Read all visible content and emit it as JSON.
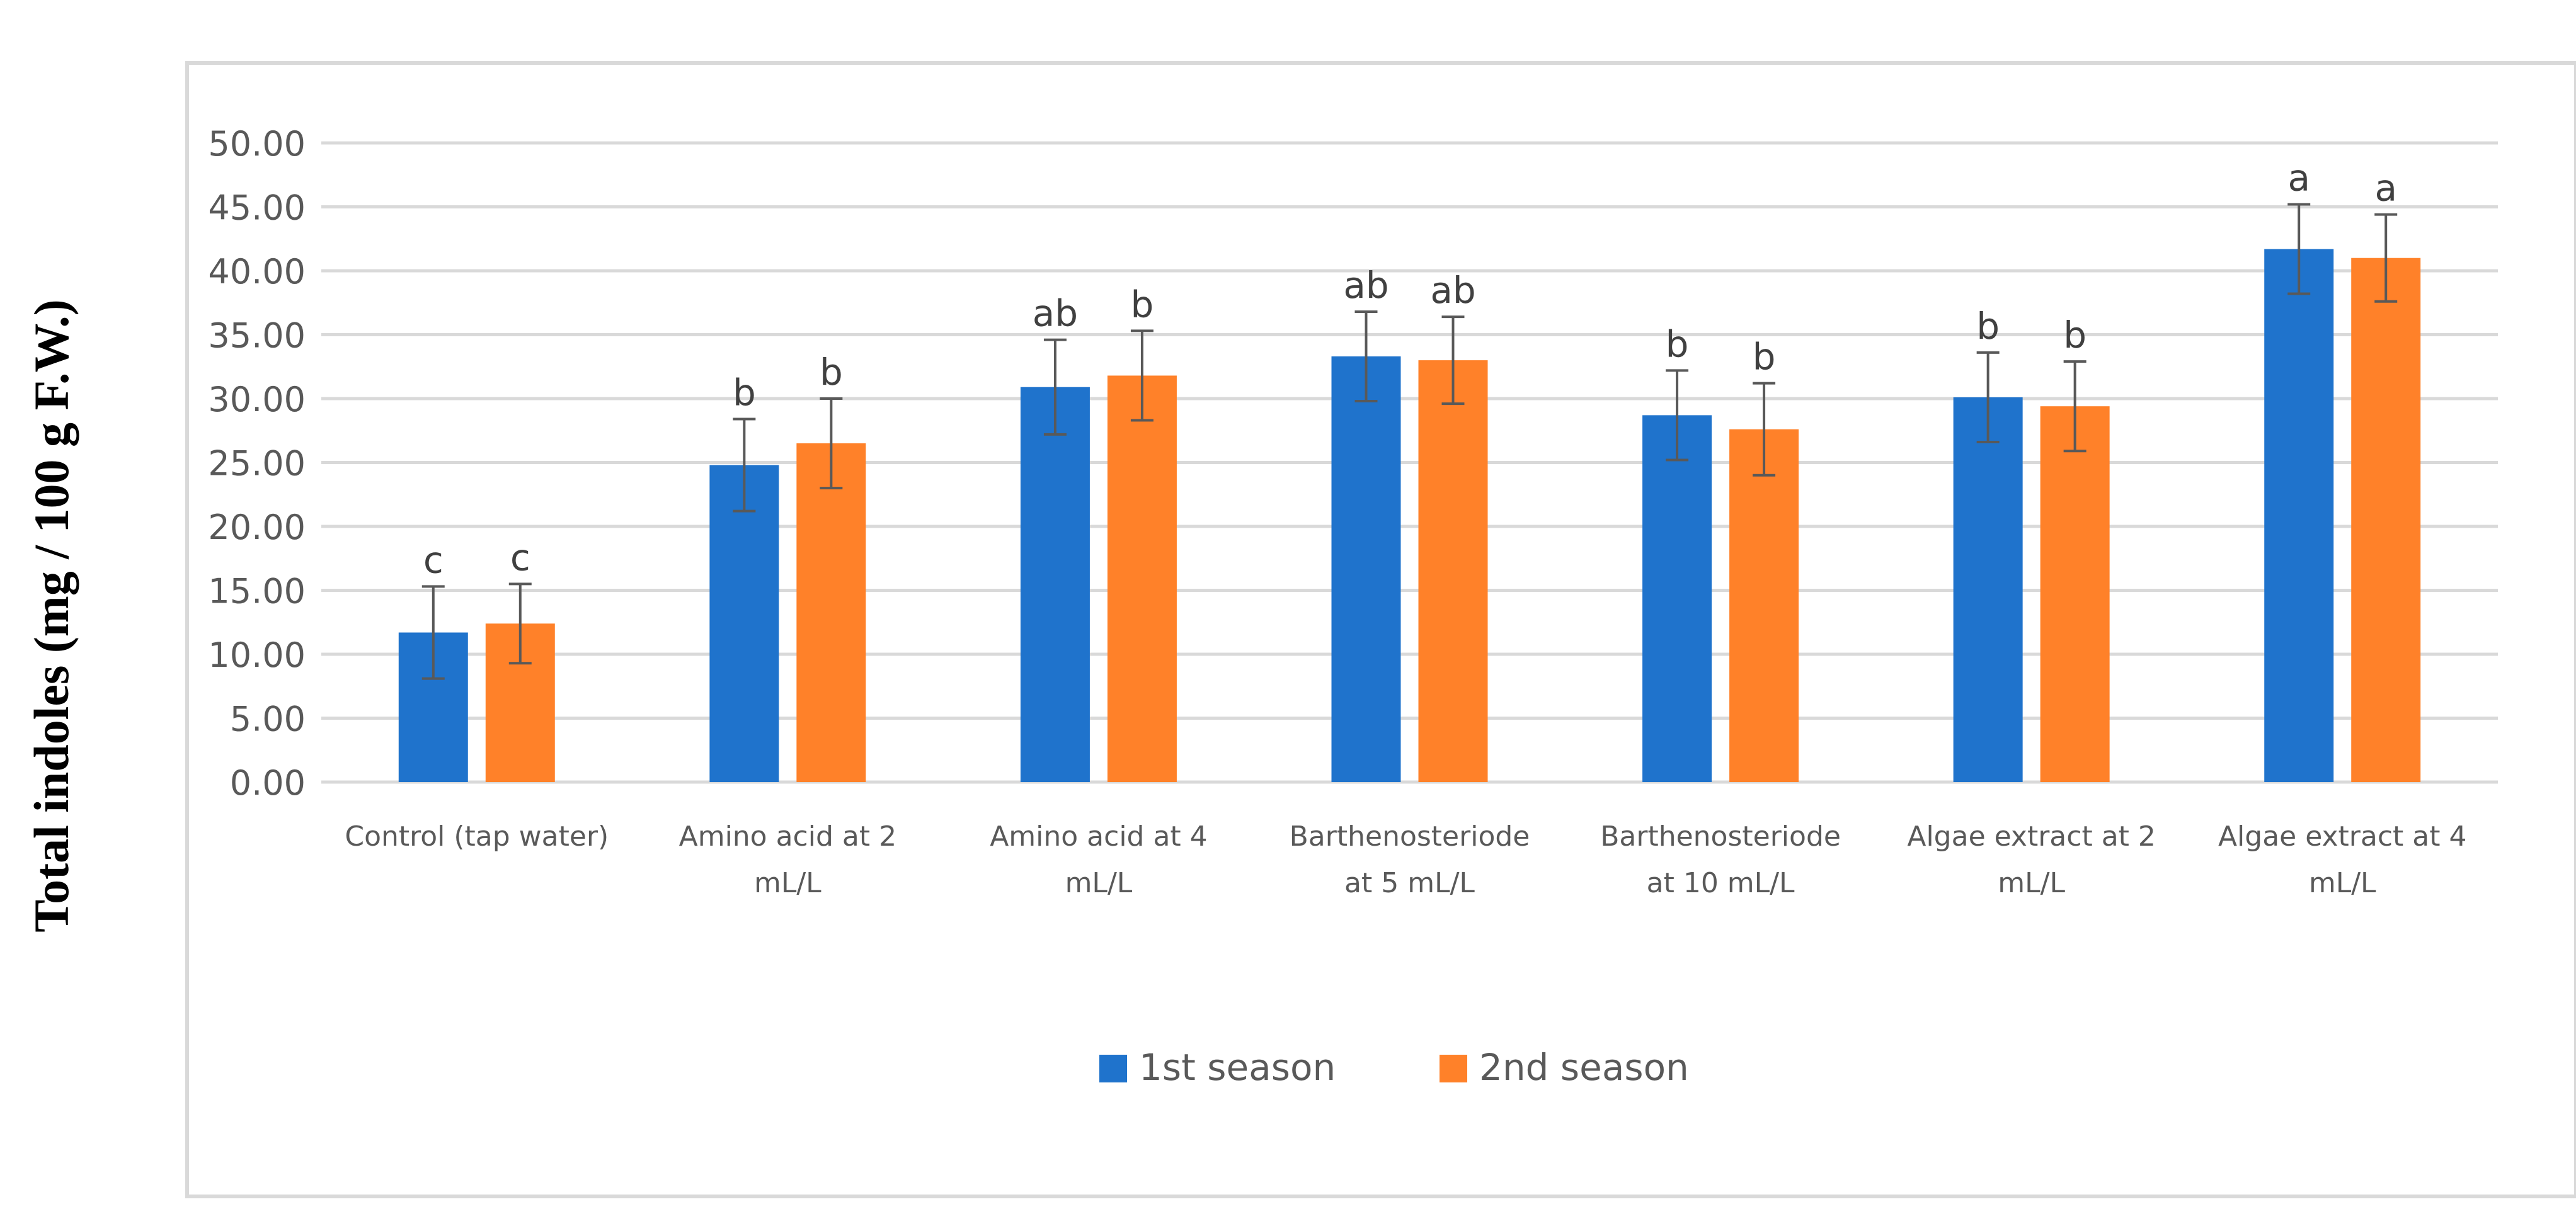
{
  "chart_data": {
    "type": "bar",
    "title": "",
    "xlabel": "",
    "ylabel": "Total indoles (mg / 100 g F.W.)",
    "ylim": [
      0,
      50
    ],
    "yticks": [
      0,
      5,
      10,
      15,
      20,
      25,
      30,
      35,
      40,
      45,
      50
    ],
    "ytick_labels": [
      "0.00",
      "5.00",
      "10.00",
      "15.00",
      "20.00",
      "25.00",
      "30.00",
      "35.00",
      "40.00",
      "45.00",
      "50.00"
    ],
    "grid": true,
    "legend_position": "bottom",
    "categories": [
      [
        "Control (tap water)"
      ],
      [
        "Amino acid at 2",
        "mL/L"
      ],
      [
        "Amino acid at 4",
        "mL/L"
      ],
      [
        "Barthenosteriode",
        "at  5 mL/L"
      ],
      [
        "Barthenosteriode",
        "at  10 mL/L"
      ],
      [
        "Algae extract at 2",
        "mL/L"
      ],
      [
        "Algae   extract at 4",
        "mL/L"
      ]
    ],
    "series": [
      {
        "name": "1st season",
        "color": "#1F73CC",
        "values": [
          11.7,
          24.8,
          30.9,
          33.3,
          28.7,
          30.1,
          41.7
        ],
        "errors": [
          3.6,
          3.6,
          3.7,
          3.5,
          3.5,
          3.5,
          3.5
        ],
        "letters": [
          "c",
          "b",
          "ab",
          "ab",
          "b",
          "b",
          "a"
        ]
      },
      {
        "name": "2nd season",
        "color": "#FF8129",
        "values": [
          12.4,
          26.5,
          31.8,
          33.0,
          27.6,
          29.4,
          41.0
        ],
        "errors": [
          3.1,
          3.5,
          3.5,
          3.4,
          3.6,
          3.5,
          3.4
        ],
        "letters": [
          "c",
          "b",
          "b",
          "ab",
          "b",
          "b",
          "a"
        ]
      }
    ]
  }
}
